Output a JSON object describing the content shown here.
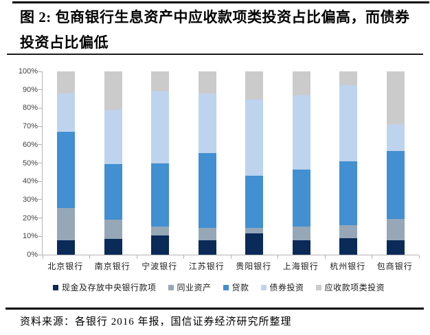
{
  "figure": {
    "title": "图 2: 包商银行生息资产中应收款项类投资占比偏高，而债券投资占比偏低",
    "source_note": "资料来源：各银行 2016 年报，国信证券经济研究所整理"
  },
  "chart_data": {
    "type": "bar",
    "stacked": true,
    "title": "图 2: 包商银行生息资产中应收款项类投资占比偏高，而债券投资占比偏低",
    "categories": [
      "北京银行",
      "南京银行",
      "宁波银行",
      "江苏银行",
      "贵阳银行",
      "上海银行",
      "杭州银行",
      "包商银行"
    ],
    "series": [
      {
        "name": "现金及存放中央银行款项",
        "color": "#0a2a58",
        "values": [
          8,
          8.5,
          10.5,
          8,
          11.5,
          8,
          9,
          8
        ]
      },
      {
        "name": "同业资产",
        "color": "#96a7b8",
        "values": [
          17.5,
          10.5,
          5,
          6.5,
          3,
          7.5,
          7,
          11.5
        ]
      },
      {
        "name": "贷款",
        "color": "#428fd1",
        "values": [
          41.5,
          30.5,
          34.5,
          41,
          28.5,
          31,
          35,
          37
        ]
      },
      {
        "name": "债券投资",
        "color": "#bed3ed",
        "values": [
          21,
          29.5,
          39,
          32.5,
          41.5,
          40.5,
          41.5,
          14.5
        ]
      },
      {
        "name": "应收款项类投资",
        "color": "#cbcbcb",
        "values": [
          12,
          21,
          11,
          12,
          15.5,
          13,
          7.5,
          29
        ]
      }
    ],
    "xlabel": "",
    "ylabel": "",
    "ylim": [
      0,
      100
    ],
    "yticks": [
      "0%",
      "10%",
      "20%",
      "30%",
      "40%",
      "50%",
      "60%",
      "70%",
      "80%",
      "90%",
      "100%"
    ],
    "grid": false,
    "legend_position": "bottom",
    "axis_color": "#b3b3b3"
  }
}
